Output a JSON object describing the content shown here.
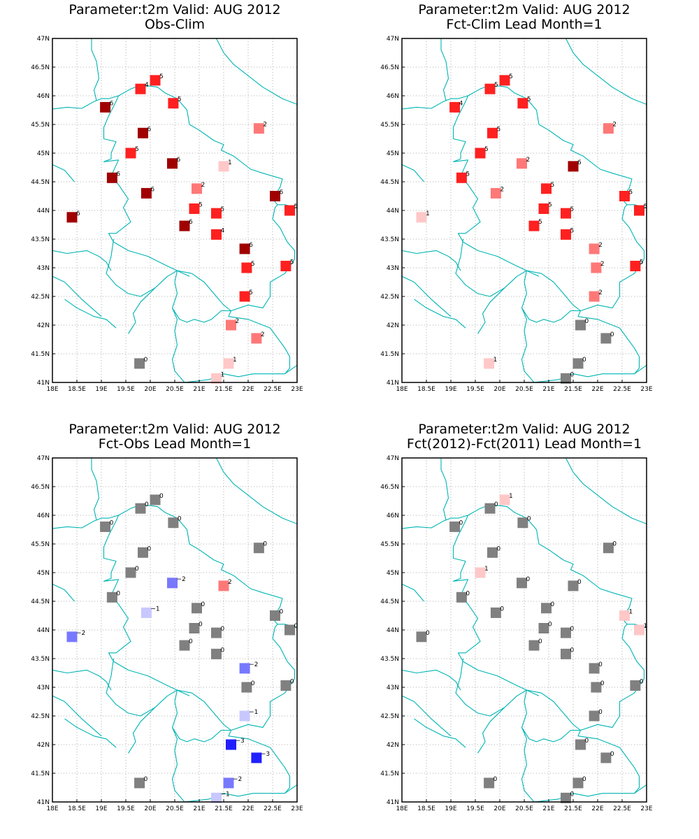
{
  "colors": {
    "border": "#00b4b4",
    "grid": "#999999",
    "frame": "#000000",
    "scale": {
      "-3": "#2020ff",
      "-2": "#7878ff",
      "-1": "#c8c8ff",
      "0": "#808080",
      "1": "#ffc8c8",
      "2": "#ff7878",
      "3": "#ff2020",
      "4": "#ff2020",
      "5": "#ff2020",
      "6": "#a00000"
    }
  },
  "x_ticks": [
    "18E",
    "18.5E",
    "19E",
    "19.5E",
    "20E",
    "20.5E",
    "21E",
    "21.5E",
    "22E",
    "22.5E",
    "23E"
  ],
  "y_ticks": [
    "41N",
    "41.5N",
    "42N",
    "42.5N",
    "43N",
    "43.5N",
    "44N",
    "44.5N",
    "45N",
    "45.5N",
    "46N",
    "46.5N",
    "47N"
  ],
  "xlim": [
    18,
    23
  ],
  "ylim": [
    41,
    47
  ],
  "stations": [
    [
      20.1,
      46.27
    ],
    [
      19.8,
      46.12
    ],
    [
      20.47,
      45.87
    ],
    [
      19.08,
      45.8
    ],
    [
      22.22,
      45.43
    ],
    [
      19.85,
      45.35
    ],
    [
      19.6,
      45.0
    ],
    [
      20.45,
      44.82
    ],
    [
      21.5,
      44.77
    ],
    [
      19.22,
      44.57
    ],
    [
      20.95,
      44.38
    ],
    [
      19.92,
      44.3
    ],
    [
      22.55,
      44.25
    ],
    [
      20.9,
      44.03
    ],
    [
      21.35,
      43.95
    ],
    [
      22.85,
      44.0
    ],
    [
      18.4,
      43.88
    ],
    [
      20.7,
      43.73
    ],
    [
      21.35,
      43.58
    ],
    [
      21.93,
      43.33
    ],
    [
      21.97,
      43.0
    ],
    [
      22.77,
      43.03
    ],
    [
      21.93,
      42.5
    ],
    [
      21.65,
      42.0
    ],
    [
      22.17,
      41.77
    ],
    [
      21.6,
      41.33
    ],
    [
      19.78,
      41.33
    ],
    [
      21.35,
      41.07
    ]
  ],
  "panels": [
    {
      "title1": "Parameter:t2m Valid: AUG 2012",
      "title2": "Obs-Clim",
      "values": [
        5,
        4,
        5,
        6,
        2,
        6,
        5,
        6,
        1,
        6,
        2,
        6,
        6,
        5,
        5,
        5,
        6,
        6,
        4,
        6,
        5,
        5,
        5,
        2,
        2,
        1,
        0,
        1
      ]
    },
    {
      "title1": "Parameter:t2m Valid: AUG 2012",
      "title2": "Fct-Clim Lead Month=1",
      "values": [
        5,
        5,
        5,
        4,
        2,
        5,
        5,
        2,
        6,
        5,
        5,
        2,
        5,
        5,
        5,
        5,
        1,
        5,
        5,
        2,
        2,
        5,
        2,
        0,
        0,
        0,
        1,
        0
      ]
    },
    {
      "title1": "Parameter:t2m Valid: AUG 2012",
      "title2": "Fct-Obs Lead Month=1",
      "values": [
        0,
        0,
        0,
        0,
        0,
        0,
        0,
        -2,
        2,
        0,
        0,
        -1,
        0,
        0,
        0,
        0,
        -2,
        0,
        0,
        -2,
        0,
        0,
        -1,
        -3,
        -3,
        -2,
        0,
        -1
      ]
    },
    {
      "title1": "Parameter:t2m Valid: AUG 2012",
      "title2": "Fct(2012)-Fct(2011) Lead Month=1",
      "values": [
        1,
        0,
        0,
        0,
        0,
        0,
        1,
        0,
        0,
        0,
        0,
        0,
        1,
        0,
        0,
        1,
        0,
        0,
        0,
        0,
        0,
        0,
        0,
        0,
        0,
        0,
        0,
        0
      ]
    }
  ],
  "borders": [
    [
      [
        18,
        45.77
      ],
      [
        18.3,
        45.8
      ],
      [
        18.6,
        45.78
      ],
      [
        18.85,
        45.9
      ],
      [
        19.0,
        45.95
      ],
      [
        19.15,
        45.95
      ],
      [
        19.35,
        46.0
      ],
      [
        19.6,
        46.12
      ],
      [
        19.75,
        46.17
      ],
      [
        20.0,
        46.17
      ],
      [
        20.15,
        46.15
      ],
      [
        20.3,
        46.05
      ],
      [
        20.55,
        45.95
      ],
      [
        20.75,
        45.75
      ],
      [
        20.8,
        45.5
      ],
      [
        21.0,
        45.4
      ],
      [
        21.3,
        45.22
      ],
      [
        21.5,
        45.15
      ],
      [
        21.45,
        45.05
      ],
      [
        21.7,
        44.95
      ],
      [
        22.05,
        44.72
      ],
      [
        22.3,
        44.65
      ],
      [
        22.5,
        44.6
      ],
      [
        22.7,
        44.55
      ],
      [
        22.65,
        44.4
      ],
      [
        22.5,
        44.2
      ],
      [
        22.6,
        44.1
      ],
      [
        22.75,
        44.1
      ],
      [
        23,
        44.05
      ]
    ],
    [
      [
        18.8,
        47
      ],
      [
        18.8,
        46.8
      ],
      [
        18.9,
        46.6
      ],
      [
        18.95,
        46.3
      ],
      [
        18.85,
        46.1
      ],
      [
        18.9,
        45.92
      ]
    ],
    [
      [
        21.35,
        47
      ],
      [
        21.5,
        46.75
      ],
      [
        21.7,
        46.55
      ],
      [
        22.0,
        46.35
      ],
      [
        22.3,
        46.15
      ],
      [
        22.7,
        45.95
      ],
      [
        23,
        45.85
      ]
    ],
    [
      [
        19.35,
        46.0
      ],
      [
        19.3,
        45.9
      ],
      [
        19.15,
        45.65
      ],
      [
        19.05,
        45.45
      ],
      [
        19.05,
        45.25
      ],
      [
        19.3,
        45.2
      ],
      [
        19.2,
        45.0
      ],
      [
        19.2,
        44.9
      ],
      [
        19.05,
        44.85
      ],
      [
        19.35,
        44.88
      ],
      [
        19.2,
        44.6
      ],
      [
        19.35,
        44.45
      ],
      [
        19.55,
        44.2
      ],
      [
        19.45,
        44.05
      ],
      [
        19.6,
        43.8
      ],
      [
        19.3,
        43.6
      ],
      [
        19.15,
        43.6
      ],
      [
        19.25,
        43.45
      ],
      [
        19.55,
        43.3
      ],
      [
        19.95,
        43.2
      ],
      [
        20.3,
        43.05
      ],
      [
        20.55,
        42.95
      ],
      [
        20.8,
        42.85
      ]
    ],
    [
      [
        18,
        44.8
      ],
      [
        18.25,
        44.7
      ],
      [
        18.45,
        44.5
      ]
    ],
    [
      [
        18,
        43.3
      ],
      [
        18.3,
        43.25
      ],
      [
        18.7,
        43.3
      ],
      [
        18.95,
        43.2
      ],
      [
        19.1,
        43.1
      ],
      [
        19.2,
        42.95
      ]
    ],
    [
      [
        18,
        42.85
      ],
      [
        18.25,
        42.75
      ],
      [
        18.6,
        42.45
      ],
      [
        18.8,
        42.3
      ],
      [
        19.0,
        42.15
      ]
    ],
    [
      [
        19.25,
        43.5
      ],
      [
        19.2,
        43.2
      ],
      [
        19.1,
        42.9
      ],
      [
        19.3,
        42.7
      ],
      [
        19.55,
        42.55
      ],
      [
        19.8,
        42.5
      ],
      [
        20.1,
        42.65
      ],
      [
        20.35,
        42.85
      ],
      [
        20.55,
        42.95
      ]
    ],
    [
      [
        20.1,
        42.65
      ],
      [
        19.8,
        42.4
      ],
      [
        19.65,
        42.2
      ],
      [
        19.7,
        42.05
      ],
      [
        19.55,
        41.85
      ]
    ],
    [
      [
        20.55,
        42.95
      ],
      [
        20.85,
        42.9
      ],
      [
        21.1,
        42.75
      ],
      [
        21.3,
        42.55
      ],
      [
        21.5,
        42.35
      ],
      [
        21.65,
        42.25
      ],
      [
        22.0,
        42.35
      ],
      [
        22.3,
        42.3
      ],
      [
        22.45,
        42.5
      ],
      [
        22.45,
        42.75
      ],
      [
        22.75,
        42.9
      ],
      [
        22.95,
        43.15
      ],
      [
        22.95,
        43.3
      ],
      [
        22.8,
        43.45
      ],
      [
        22.65,
        43.7
      ],
      [
        22.5,
        43.85
      ],
      [
        22.55,
        44.05
      ],
      [
        22.6,
        44.1
      ]
    ],
    [
      [
        20.55,
        42.95
      ],
      [
        20.5,
        42.75
      ],
      [
        20.55,
        42.55
      ],
      [
        20.45,
        42.3
      ],
      [
        20.6,
        42.1
      ],
      [
        20.75,
        42.05
      ],
      [
        20.9,
        42.1
      ],
      [
        21.1,
        42.05
      ],
      [
        21.25,
        42.1
      ],
      [
        21.45,
        42.25
      ],
      [
        21.65,
        42.25
      ]
    ],
    [
      [
        20.45,
        42.3
      ],
      [
        20.55,
        42.1
      ],
      [
        20.5,
        41.9
      ],
      [
        20.55,
        41.65
      ],
      [
        20.45,
        41.4
      ],
      [
        20.5,
        41.2
      ],
      [
        20.7,
        41.0
      ]
    ],
    [
      [
        21.65,
        42.25
      ],
      [
        21.6,
        42.15
      ],
      [
        22.0,
        42.1
      ],
      [
        22.3,
        42.0
      ],
      [
        22.45,
        41.95
      ],
      [
        22.75,
        41.6
      ],
      [
        22.85,
        41.45
      ],
      [
        22.85,
        41.25
      ],
      [
        22.75,
        41.15
      ]
    ],
    [
      [
        20.7,
        41.0
      ],
      [
        21.2,
        41.05
      ],
      [
        21.5,
        41.15
      ],
      [
        21.8,
        41.1
      ],
      [
        22.1,
        41.15
      ],
      [
        22.4,
        41.15
      ],
      [
        22.75,
        41.15
      ],
      [
        23,
        41.3
      ]
    ],
    [
      [
        18.25,
        42.45
      ],
      [
        18.5,
        42.3
      ],
      [
        18.85,
        42.15
      ],
      [
        19.1,
        42.1
      ],
      [
        19.3,
        41.95
      ]
    ]
  ]
}
